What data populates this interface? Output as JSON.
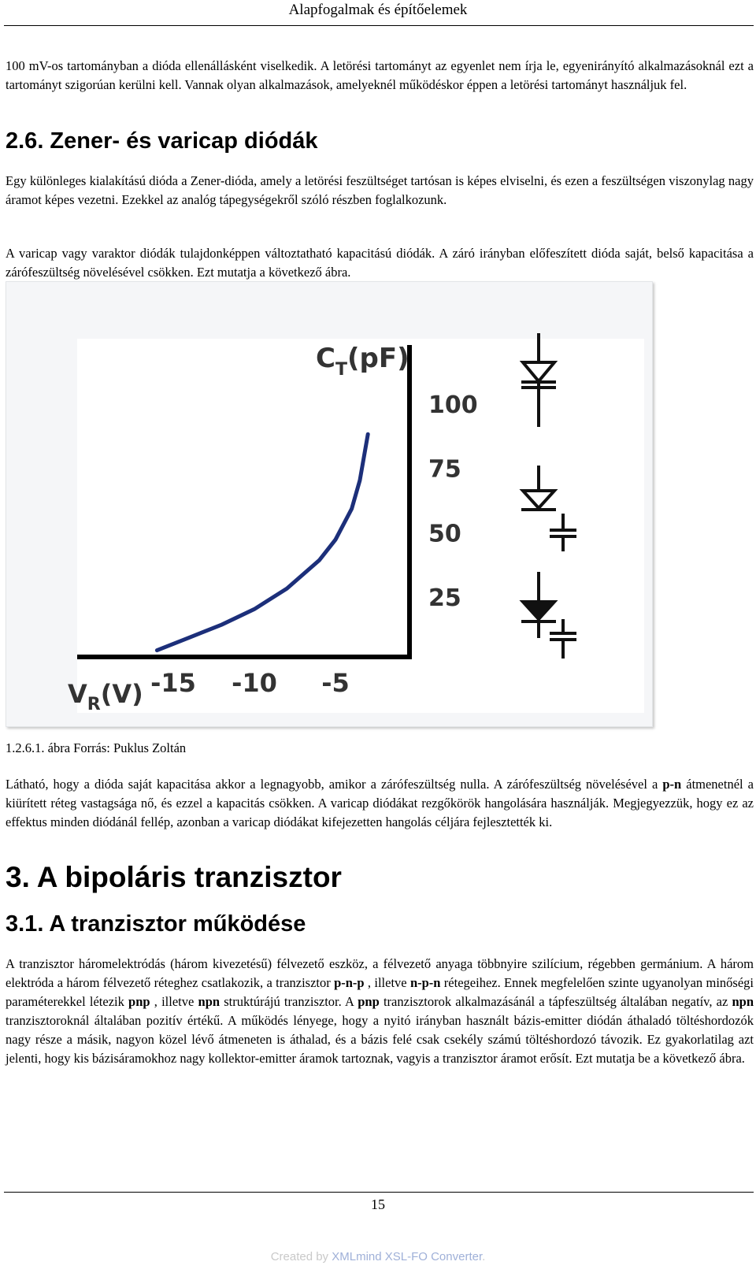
{
  "header": {
    "title": "Alapfogalmak és építőelemek"
  },
  "intro_paragraph": "100 mV-os tartományban a dióda ellenállásként viselkedik. A letörési tartományt az egyenlet nem írja le, egyenirányító alkalmazásoknál ezt a tartományt szigorúan kerülni kell. Vannak olyan alkalmazások, amelyeknél működéskor éppen a letörési tartományt használjuk fel.",
  "section_2_6": {
    "heading": "2.6. Zener- és varicap diódák",
    "paragraph_1": "Egy különleges kialakítású dióda a Zener-dióda, amely a letörési feszültséget tartósan is képes elviselni, és ezen a feszültségen viszonylag nagy áramot képes vezetni. Ezekkel az analóg tápegységekről szóló részben foglalkozunk.",
    "paragraph_2": "A varicap vagy varaktor diódák tulajdonképpen változtatható kapacitású diódák. A záró irányban előfeszített dióda saját, belső kapacitása a zárófeszültség növelésével csökken. Ezt mutatja a következő ábra."
  },
  "figure": {
    "caption": "1.2.6.1. ábra Forrás: Puklus Zoltán",
    "curve_color": "#1c2f7a",
    "symbol_names": [
      "varicap-symbol-1",
      "varicap-symbol-2",
      "varicap-symbol-3"
    ]
  },
  "chart_data": {
    "type": "line",
    "ylabel": "CT(pF)",
    "xlabel": "VR(V)",
    "x_ticks": [
      "-15",
      "-10",
      "-5"
    ],
    "y_ticks": [
      "100",
      "75",
      "50",
      "25"
    ],
    "series": [
      {
        "x": [
          -16,
          -14,
          -12,
          -10,
          -8,
          -6,
          -5,
          -4,
          -3.5,
          -3
        ],
        "y": [
          4,
          9,
          14,
          20,
          28,
          39,
          47,
          59,
          70,
          88
        ]
      }
    ]
  },
  "after_figure_paragraph": {
    "t1": "Látható, hogy a dióda saját kapacitása akkor a legnagyobb, amikor a zárófeszültség nulla. A zárófeszültség növelésével a ",
    "b1": "p-n",
    "t2": " átmenetnél a kiürített réteg vastagsága nő, és ezzel a kapacitás csökken. A varicap diódákat rezgőkörök hangolására használják. Megjegyezzük, hogy ez az effektus minden diódánál fellép, azonban a varicap diódákat kifejezetten hangolás céljára fejlesztették ki."
  },
  "chapter_3": {
    "heading": "3. A bipoláris tranzisztor"
  },
  "section_3_1": {
    "heading": "3.1. A tranzisztor működése",
    "t1": "A tranzisztor háromelektródás (három kivezetésű) félvezető eszköz, a félvezető anyaga többnyire szilícium, régebben germánium. A három elektróda a három félvezető réteghez csatlakozik, a tranzisztor ",
    "b1": "p-n-p",
    "t2": " , illetve ",
    "b2": "n-p-n",
    "t3": " rétegeihez. Ennek megfelelően szinte ugyanolyan minőségi paraméterekkel létezik ",
    "b3": "pnp",
    "t4": " , illetve ",
    "b4": "npn",
    "t5": " struktúrájú tranzisztor. A ",
    "b5": "pnp",
    "t6": " tranzisztorok alkalmazásánál a tápfeszültség általában negatív, az ",
    "b6": "npn",
    "t7": " tranzisztoroknál általában pozitív értékű. A működés lényege, hogy a nyitó irányban használt bázis-emitter diódán áthaladó töltéshordozók nagy része a másik, nagyon közel lévő átmeneten is áthalad, és a bázis felé csak csekély számú töltéshordozó távozik. Ez gyakorlatilag azt jelenti, hogy kis bázisáramokhoz nagy kollektor-emitter áramok tartoznak, vagyis a tranzisztor áramot erősít. Ezt mutatja be a következő ábra."
  },
  "footer": {
    "page_number": "15",
    "credit_prefix": "Created by ",
    "credit_brand": "XMLmind XSL-FO Converter",
    "credit_suffix": "."
  }
}
